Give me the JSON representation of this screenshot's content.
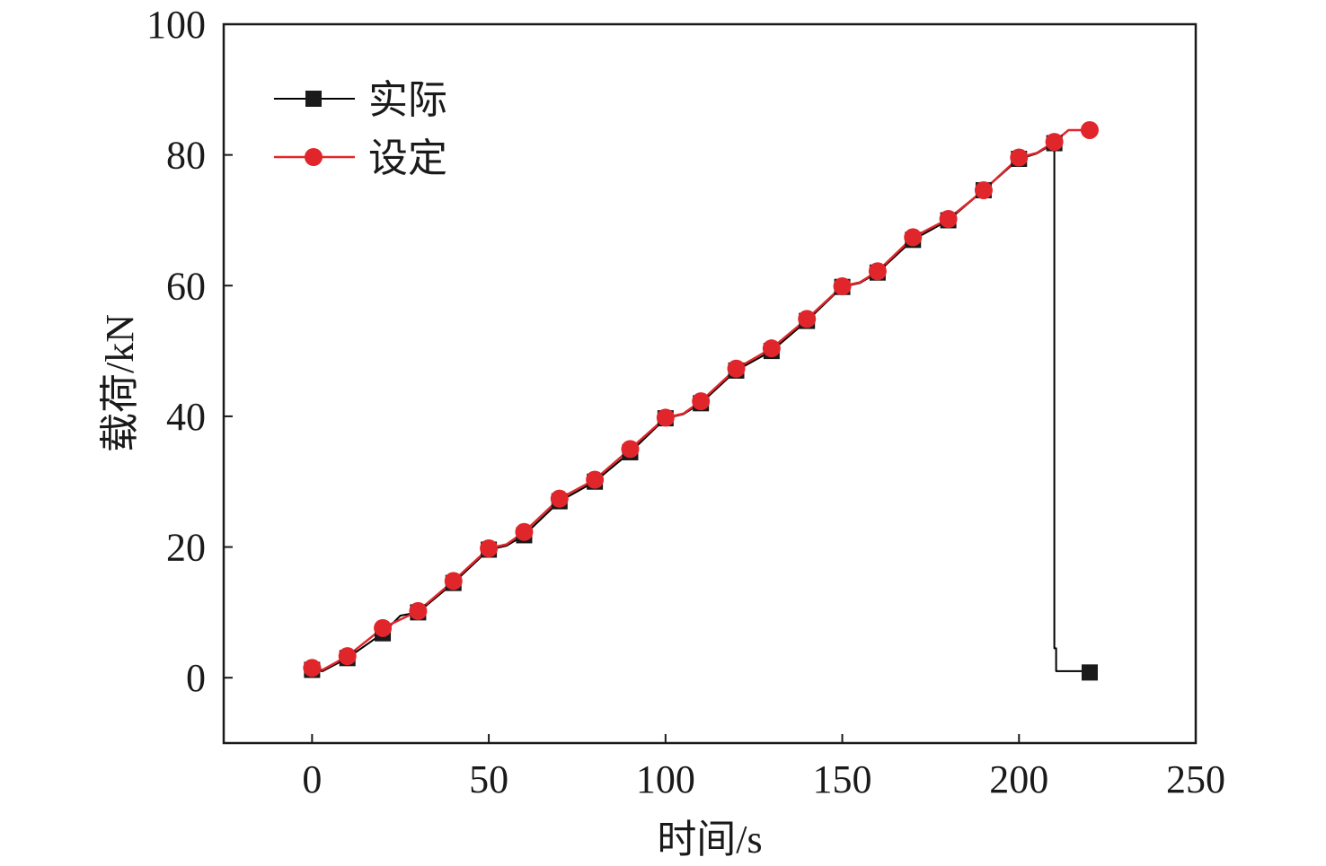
{
  "chart_data": {
    "type": "line",
    "xlabel": "时间/s",
    "ylabel": "载荷/kN",
    "xlim": [
      -25,
      250
    ],
    "ylim": [
      -10,
      100
    ],
    "xticks": [
      0,
      50,
      100,
      150,
      200,
      250
    ],
    "yticks": [
      0,
      20,
      40,
      60,
      80,
      100
    ],
    "tick_labels": {
      "x": [
        "0",
        "50",
        "100",
        "150",
        "200",
        "250"
      ],
      "y": [
        "0",
        "20",
        "40",
        "60",
        "80",
        "100"
      ]
    },
    "grid": false,
    "legend_position": "top-left",
    "series": [
      {
        "name": "实际",
        "color": "#000000",
        "marker": "square",
        "x": [
          0,
          10,
          20,
          30,
          40,
          50,
          60,
          70,
          80,
          90,
          100,
          110,
          120,
          130,
          140,
          150,
          160,
          170,
          180,
          190,
          200,
          210,
          220
        ],
        "y": [
          1.2,
          3.0,
          6.8,
          10.0,
          14.5,
          19.6,
          21.8,
          27.0,
          30.0,
          34.5,
          39.7,
          42.0,
          47.0,
          50.0,
          54.6,
          59.8,
          62.0,
          67.0,
          70.0,
          74.6,
          79.4,
          81.8,
          0.8
        ],
        "line": [
          [
            0,
            1.2
          ],
          [
            3,
            1.0
          ],
          [
            10,
            3.0
          ],
          [
            20,
            6.8
          ],
          [
            25,
            9.5
          ],
          [
            30,
            10.0
          ],
          [
            40,
            14.5
          ],
          [
            50,
            19.6
          ],
          [
            55,
            20.2
          ],
          [
            60,
            21.8
          ],
          [
            70,
            27.0
          ],
          [
            80,
            30.0
          ],
          [
            90,
            34.5
          ],
          [
            100,
            39.7
          ],
          [
            105,
            40.3
          ],
          [
            110,
            42.0
          ],
          [
            120,
            47.0
          ],
          [
            130,
            50.0
          ],
          [
            140,
            54.6
          ],
          [
            150,
            59.8
          ],
          [
            155,
            60.4
          ],
          [
            160,
            62.0
          ],
          [
            170,
            67.0
          ],
          [
            180,
            70.0
          ],
          [
            190,
            74.6
          ],
          [
            200,
            79.4
          ],
          [
            205,
            80.2
          ],
          [
            210,
            81.8
          ],
          [
            210,
            4.5
          ],
          [
            210.5,
            4.5
          ],
          [
            210.5,
            1.0
          ],
          [
            222,
            1.0
          ]
        ]
      },
      {
        "name": "设定",
        "color": "#e0262b",
        "marker": "circle",
        "x": [
          0,
          10,
          20,
          30,
          40,
          50,
          60,
          70,
          80,
          90,
          100,
          110,
          120,
          130,
          140,
          150,
          160,
          170,
          180,
          190,
          200,
          210,
          220
        ],
        "y": [
          1.5,
          3.3,
          7.6,
          10.2,
          14.8,
          19.8,
          22.3,
          27.4,
          30.3,
          35.0,
          39.8,
          42.3,
          47.3,
          50.4,
          54.9,
          59.9,
          62.2,
          67.4,
          70.2,
          74.6,
          79.6,
          82.0,
          83.8
        ],
        "line": [
          [
            0,
            1.5
          ],
          [
            3,
            1.2
          ],
          [
            10,
            3.3
          ],
          [
            20,
            7.6
          ],
          [
            30,
            10.2
          ],
          [
            40,
            14.8
          ],
          [
            50,
            19.8
          ],
          [
            55,
            20.4
          ],
          [
            60,
            22.3
          ],
          [
            70,
            27.4
          ],
          [
            80,
            30.3
          ],
          [
            90,
            35.0
          ],
          [
            100,
            39.8
          ],
          [
            105,
            40.4
          ],
          [
            110,
            42.3
          ],
          [
            120,
            47.3
          ],
          [
            130,
            50.4
          ],
          [
            140,
            54.9
          ],
          [
            150,
            59.9
          ],
          [
            155,
            60.5
          ],
          [
            160,
            62.2
          ],
          [
            170,
            67.4
          ],
          [
            180,
            70.2
          ],
          [
            190,
            74.6
          ],
          [
            200,
            79.6
          ],
          [
            205,
            80.3
          ],
          [
            210,
            82.0
          ],
          [
            214,
            83.8
          ],
          [
            222,
            83.8
          ]
        ]
      }
    ]
  }
}
